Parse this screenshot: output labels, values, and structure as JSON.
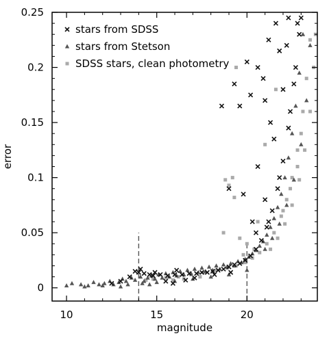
{
  "chart_data": {
    "type": "scatter",
    "title": "",
    "xlabel": "magnitude",
    "ylabel": "error",
    "xlim": [
      9.2,
      23.9
    ],
    "ylim": [
      -0.012,
      0.25
    ],
    "x_ticks": [
      10,
      15,
      20
    ],
    "y_ticks": [
      0,
      0.05,
      0.1,
      0.15,
      0.2,
      0.25
    ],
    "x_tick_labels": [
      "10",
      "15",
      "20"
    ],
    "y_tick_labels": [
      "0",
      "0.05",
      "0.1",
      "0.15",
      "0.2",
      "0.25"
    ],
    "grid": false,
    "legend_position": "top-left",
    "colors": {
      "sdss": "#111111",
      "stetson": "#555555",
      "clean": "#aaaaaa"
    },
    "reference_lines": [
      {
        "x": 14.0,
        "y_from": -0.012,
        "y_to": 0.05,
        "style": "dashed"
      },
      {
        "x": 20.0,
        "y_from": -0.012,
        "y_to": 0.04,
        "style": "dashed"
      }
    ],
    "series": [
      {
        "name": "stars from SDSS",
        "marker": "x",
        "points": [
          [
            13.8,
            0.015
          ],
          [
            14.0,
            0.014
          ],
          [
            14.3,
            0.013
          ],
          [
            14.6,
            0.012
          ],
          [
            13.5,
            0.01
          ],
          [
            14.8,
            0.011
          ],
          [
            15.2,
            0.012
          ],
          [
            15.6,
            0.011
          ],
          [
            16.0,
            0.012
          ],
          [
            16.4,
            0.012
          ],
          [
            16.8,
            0.013
          ],
          [
            17.2,
            0.013
          ],
          [
            17.5,
            0.014
          ],
          [
            17.8,
            0.014
          ],
          [
            18.1,
            0.015
          ],
          [
            18.4,
            0.016
          ],
          [
            18.7,
            0.017
          ],
          [
            19.0,
            0.019
          ],
          [
            19.3,
            0.021
          ],
          [
            19.6,
            0.022
          ],
          [
            19.9,
            0.025
          ],
          [
            20.2,
            0.029
          ],
          [
            20.5,
            0.035
          ],
          [
            20.8,
            0.043
          ],
          [
            21.1,
            0.055
          ],
          [
            21.4,
            0.07
          ],
          [
            21.7,
            0.09
          ],
          [
            22.0,
            0.115
          ],
          [
            22.3,
            0.145
          ],
          [
            22.6,
            0.185
          ],
          [
            22.9,
            0.23
          ],
          [
            21.2,
            0.06
          ],
          [
            21.8,
            0.1
          ],
          [
            22.4,
            0.16
          ],
          [
            22.7,
            0.2
          ],
          [
            18.6,
            0.165
          ],
          [
            19.3,
            0.185
          ],
          [
            19.6,
            0.165
          ],
          [
            20.0,
            0.205
          ],
          [
            20.2,
            0.175
          ],
          [
            20.6,
            0.2
          ],
          [
            21.0,
            0.17
          ],
          [
            21.2,
            0.225
          ],
          [
            21.6,
            0.24
          ],
          [
            22.3,
            0.245
          ],
          [
            22.8,
            0.24
          ],
          [
            23.0,
            0.245
          ],
          [
            20.9,
            0.19
          ],
          [
            21.5,
            0.135
          ],
          [
            19.0,
            0.09
          ],
          [
            19.8,
            0.085
          ],
          [
            20.6,
            0.11
          ],
          [
            21.0,
            0.08
          ],
          [
            20.5,
            0.05
          ],
          [
            20.3,
            0.06
          ],
          [
            21.3,
            0.15
          ],
          [
            21.8,
            0.215
          ],
          [
            22.0,
            0.18
          ],
          [
            22.2,
            0.22
          ],
          [
            15.9,
            0.004
          ],
          [
            15.5,
            0.006
          ],
          [
            16.6,
            0.007
          ],
          [
            17.1,
            0.009
          ],
          [
            18.2,
            0.012
          ],
          [
            19.1,
            0.014
          ],
          [
            12.5,
            0.004
          ],
          [
            13.0,
            0.006
          ],
          [
            14.1,
            0.017
          ],
          [
            14.9,
            0.014
          ],
          [
            16.1,
            0.016
          ]
        ]
      },
      {
        "name": "stars from Stetson",
        "marker": "triangle",
        "points": [
          [
            10.0,
            0.002
          ],
          [
            10.3,
            0.004
          ],
          [
            10.8,
            0.003
          ],
          [
            11.2,
            0.002
          ],
          [
            11.5,
            0.005
          ],
          [
            11.8,
            0.003
          ],
          [
            12.1,
            0.004
          ],
          [
            12.4,
            0.006
          ],
          [
            12.6,
            0.003
          ],
          [
            12.9,
            0.005
          ],
          [
            13.1,
            0.008
          ],
          [
            13.3,
            0.006
          ],
          [
            13.6,
            0.009
          ],
          [
            13.8,
            0.007
          ],
          [
            14.1,
            0.01
          ],
          [
            14.3,
            0.006
          ],
          [
            14.5,
            0.009
          ],
          [
            14.7,
            0.011
          ],
          [
            14.9,
            0.008
          ],
          [
            15.1,
            0.012
          ],
          [
            15.3,
            0.009
          ],
          [
            15.5,
            0.013
          ],
          [
            15.7,
            0.01
          ],
          [
            15.9,
            0.014
          ],
          [
            16.1,
            0.011
          ],
          [
            16.3,
            0.015
          ],
          [
            16.5,
            0.012
          ],
          [
            16.7,
            0.016
          ],
          [
            16.9,
            0.013
          ],
          [
            17.1,
            0.017
          ],
          [
            17.3,
            0.014
          ],
          [
            17.5,
            0.018
          ],
          [
            17.7,
            0.015
          ],
          [
            17.9,
            0.019
          ],
          [
            18.1,
            0.016
          ],
          [
            18.3,
            0.02
          ],
          [
            18.5,
            0.017
          ],
          [
            18.7,
            0.021
          ],
          [
            18.9,
            0.019
          ],
          [
            19.1,
            0.022
          ],
          [
            19.3,
            0.02
          ],
          [
            19.5,
            0.024
          ],
          [
            19.7,
            0.023
          ],
          [
            19.9,
            0.026
          ],
          [
            20.1,
            0.028
          ],
          [
            20.3,
            0.031
          ],
          [
            20.5,
            0.034
          ],
          [
            20.7,
            0.038
          ],
          [
            20.9,
            0.042
          ],
          [
            21.1,
            0.048
          ],
          [
            21.3,
            0.055
          ],
          [
            21.5,
            0.063
          ],
          [
            21.7,
            0.073
          ],
          [
            21.9,
            0.085
          ],
          [
            22.1,
            0.1
          ],
          [
            22.3,
            0.118
          ],
          [
            22.5,
            0.14
          ],
          [
            22.7,
            0.165
          ],
          [
            22.9,
            0.195
          ],
          [
            23.1,
            0.23
          ],
          [
            21.0,
            0.035
          ],
          [
            21.4,
            0.045
          ],
          [
            21.8,
            0.058
          ],
          [
            22.2,
            0.075
          ],
          [
            22.6,
            0.098
          ],
          [
            23.0,
            0.13
          ],
          [
            23.3,
            0.17
          ],
          [
            23.5,
            0.22
          ],
          [
            14.2,
            0.004
          ],
          [
            15.0,
            0.005
          ],
          [
            13.4,
            0.003
          ],
          [
            16.0,
            0.006
          ],
          [
            17.0,
            0.008
          ],
          [
            18.0,
            0.01
          ],
          [
            19.0,
            0.012
          ],
          [
            20.0,
            0.016
          ],
          [
            11.0,
            0.001
          ],
          [
            12.0,
            0.002
          ],
          [
            13.0,
            0.001
          ],
          [
            14.6,
            0.003
          ]
        ]
      },
      {
        "name": "SDSS stars, clean photometry",
        "marker": "square",
        "points": [
          [
            14.8,
            0.008
          ],
          [
            15.5,
            0.009
          ],
          [
            16.2,
            0.01
          ],
          [
            16.9,
            0.012
          ],
          [
            17.6,
            0.014
          ],
          [
            18.3,
            0.016
          ],
          [
            18.9,
            0.018
          ],
          [
            19.4,
            0.02
          ],
          [
            19.9,
            0.023
          ],
          [
            20.3,
            0.027
          ],
          [
            20.7,
            0.032
          ],
          [
            21.1,
            0.04
          ],
          [
            21.5,
            0.05
          ],
          [
            21.9,
            0.065
          ],
          [
            22.2,
            0.08
          ],
          [
            22.5,
            0.1
          ],
          [
            22.8,
            0.125
          ],
          [
            23.1,
            0.16
          ],
          [
            23.3,
            0.19
          ],
          [
            23.5,
            0.225
          ],
          [
            21.3,
            0.035
          ],
          [
            21.7,
            0.045
          ],
          [
            22.1,
            0.058
          ],
          [
            22.5,
            0.075
          ],
          [
            22.9,
            0.098
          ],
          [
            23.2,
            0.125
          ],
          [
            23.5,
            0.16
          ],
          [
            23.7,
            0.2
          ],
          [
            23.8,
            0.23
          ],
          [
            18.8,
            0.098
          ],
          [
            19.0,
            0.093
          ],
          [
            19.3,
            0.082
          ],
          [
            19.2,
            0.1
          ],
          [
            19.4,
            0.2
          ],
          [
            18.7,
            0.05
          ],
          [
            19.6,
            0.045
          ],
          [
            20.0,
            0.04
          ],
          [
            20.6,
            0.06
          ],
          [
            21.0,
            0.13
          ],
          [
            21.6,
            0.18
          ],
          [
            22.0,
            0.07
          ],
          [
            22.4,
            0.09
          ],
          [
            22.8,
            0.11
          ],
          [
            23.0,
            0.14
          ],
          [
            20.4,
            0.035
          ],
          [
            19.8,
            0.03
          ],
          [
            17.4,
            0.01
          ],
          [
            16.5,
            0.008
          ],
          [
            15.9,
            0.007
          ],
          [
            14.4,
            0.007
          ]
        ]
      }
    ]
  }
}
